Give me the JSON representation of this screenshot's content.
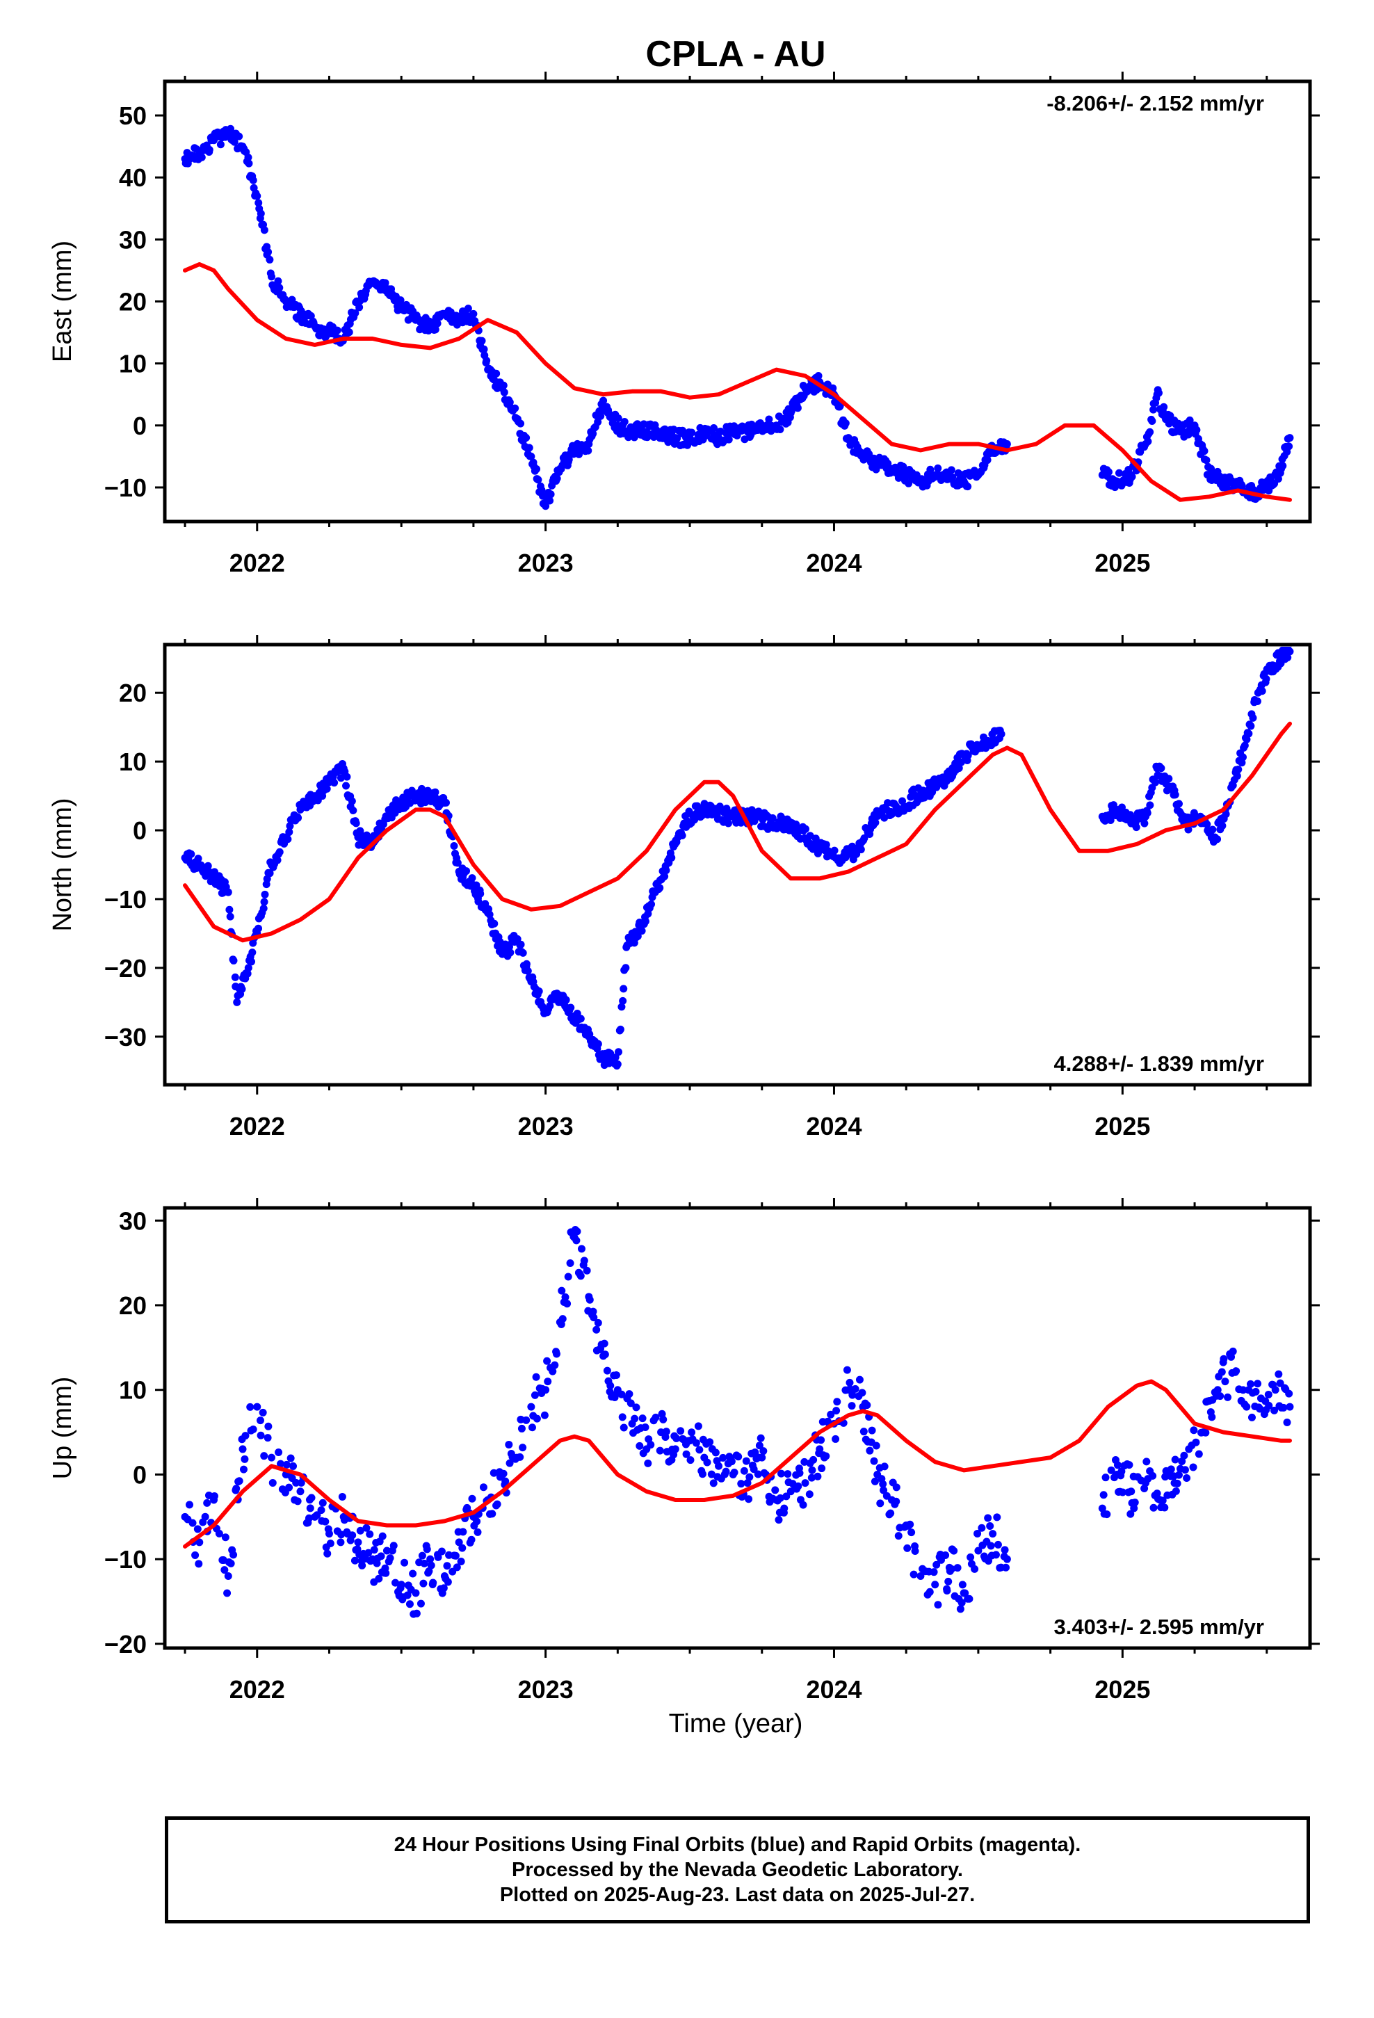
{
  "title": "CPLA - AU",
  "xlabel": "Time (year)",
  "xticks": [
    "2022",
    "2023",
    "2024",
    "2025"
  ],
  "footer": {
    "line1": "24 Hour Positions Using Final Orbits (blue) and Rapid Orbits (magenta).",
    "line2": "Processed by the Nevada Geodetic Laboratory.",
    "line3": "Plotted on 2025-Aug-23. Last data on 2025-Jul-27."
  },
  "colors": {
    "observations": "#0000ff",
    "model": "#ff0000",
    "frame": "#000000"
  },
  "chart_data": [
    {
      "type": "scatter",
      "name": "east",
      "ylabel": "East (mm)",
      "rate_label": "-8.206+/- 2.152 mm/yr",
      "rate_position": "top-right",
      "xlim": [
        2021.68,
        2025.65
      ],
      "ylim": [
        -15.5,
        55.5
      ],
      "yticks": [
        50,
        40,
        30,
        20,
        10,
        0,
        -10
      ],
      "gaps": [
        [
          2024.58,
          2024.93
        ]
      ],
      "series": [
        {
          "name": "",
          "style": "points",
          "x": [
            2021.75,
            2021.8,
            2021.85,
            2021.9,
            2021.95,
            2022.0,
            2022.05,
            2022.1,
            2022.15,
            2022.2,
            2022.25,
            2022.3,
            2022.35,
            2022.4,
            2022.45,
            2022.5,
            2022.55,
            2022.6,
            2022.65,
            2022.7,
            2022.75,
            2022.8,
            2022.85,
            2022.9,
            2022.95,
            2023.0,
            2023.05,
            2023.1,
            2023.15,
            2023.2,
            2023.25,
            2023.3,
            2023.35,
            2023.4,
            2023.45,
            2023.5,
            2023.55,
            2023.6,
            2023.65,
            2023.7,
            2023.75,
            2023.8,
            2023.85,
            2023.9,
            2023.95,
            2024.0,
            2024.05,
            2024.1,
            2024.15,
            2024.2,
            2024.25,
            2024.3,
            2024.35,
            2024.4,
            2024.45,
            2024.5,
            2024.55,
            2024.6,
            2024.93,
            2024.98,
            2025.03,
            2025.08,
            2025.12,
            2025.15,
            2025.2,
            2025.25,
            2025.3,
            2025.35,
            2025.4,
            2025.45,
            2025.5,
            2025.55,
            2025.58
          ],
          "y": [
            43,
            44,
            46,
            47,
            45,
            37,
            24,
            20,
            18,
            16,
            15,
            14,
            20,
            23,
            22,
            19,
            17,
            16,
            18,
            17,
            18,
            9,
            6,
            1,
            -5,
            -13,
            -7,
            -4,
            -3,
            4,
            0,
            -1,
            -1,
            -1,
            -2,
            -2,
            -1,
            -2,
            -1,
            -1,
            0,
            0,
            2,
            6,
            7,
            5,
            -2,
            -5,
            -6,
            -7,
            -8,
            -9,
            -8,
            -8,
            -9,
            -8,
            -4,
            -3,
            -8,
            -9,
            -8,
            -3,
            5,
            1,
            -1,
            0,
            -8,
            -9,
            -10,
            -11,
            -10,
            -7,
            -2
          ]
        },
        {
          "name": "",
          "style": "line",
          "x": [
            2021.75,
            2021.8,
            2021.85,
            2021.9,
            2022.0,
            2022.1,
            2022.2,
            2022.3,
            2022.4,
            2022.5,
            2022.6,
            2022.7,
            2022.8,
            2022.9,
            2023.0,
            2023.1,
            2023.2,
            2023.3,
            2023.4,
            2023.5,
            2023.6,
            2023.7,
            2023.8,
            2023.9,
            2024.0,
            2024.1,
            2024.2,
            2024.3,
            2024.4,
            2024.5,
            2024.6,
            2024.7,
            2024.8,
            2024.9,
            2025.0,
            2025.1,
            2025.2,
            2025.3,
            2025.4,
            2025.5,
            2025.58
          ],
          "y": [
            25,
            26,
            25,
            22,
            17,
            14,
            13,
            14,
            14,
            13,
            12.5,
            14,
            17,
            15,
            10,
            6,
            5,
            5.5,
            5.5,
            4.5,
            5,
            7,
            9,
            8,
            5,
            1,
            -3,
            -4,
            -3,
            -3,
            -4,
            -3,
            0,
            0,
            -4,
            -9,
            -12,
            -11.5,
            -10.5,
            -11.5,
            -12
          ]
        }
      ]
    },
    {
      "type": "scatter",
      "name": "north",
      "ylabel": "North (mm)",
      "rate_label": "4.288+/- 1.839 mm/yr",
      "rate_position": "bottom-right",
      "xlim": [
        2021.68,
        2025.65
      ],
      "ylim": [
        -37,
        27
      ],
      "yticks": [
        20,
        10,
        0,
        -10,
        -20,
        -30
      ],
      "gaps": [
        [
          2024.58,
          2024.93
        ]
      ],
      "series": [
        {
          "name": "",
          "style": "points",
          "x": [
            2021.75,
            2021.8,
            2021.85,
            2021.9,
            2021.93,
            2021.97,
            2022.0,
            2022.05,
            2022.1,
            2022.15,
            2022.2,
            2022.25,
            2022.3,
            2022.35,
            2022.4,
            2022.45,
            2022.5,
            2022.55,
            2022.6,
            2022.65,
            2022.7,
            2022.75,
            2022.8,
            2022.85,
            2022.9,
            2022.95,
            2023.0,
            2023.05,
            2023.1,
            2023.15,
            2023.2,
            2023.25,
            2023.28,
            2023.33,
            2023.38,
            2023.43,
            2023.48,
            2023.53,
            2023.58,
            2023.63,
            2023.68,
            2023.73,
            2023.78,
            2023.83,
            2023.88,
            2023.93,
            2023.98,
            2024.03,
            2024.08,
            2024.13,
            2024.18,
            2024.23,
            2024.28,
            2024.33,
            2024.38,
            2024.43,
            2024.48,
            2024.53,
            2024.58,
            2024.93,
            2024.98,
            2025.03,
            2025.08,
            2025.12,
            2025.17,
            2025.22,
            2025.27,
            2025.32,
            2025.37,
            2025.42,
            2025.47,
            2025.52,
            2025.58
          ],
          "y": [
            -4,
            -5,
            -7,
            -9,
            -25,
            -20,
            -15,
            -5,
            -1,
            3,
            5,
            7,
            9,
            -1,
            -2,
            2,
            4,
            5,
            5,
            4,
            -6,
            -8,
            -12,
            -18,
            -16,
            -22,
            -26,
            -24,
            -27,
            -30,
            -33,
            -34,
            -17,
            -14,
            -9,
            -4,
            1,
            3,
            3,
            2,
            2,
            2,
            1,
            1,
            0,
            -2,
            -3,
            -4,
            -3,
            1,
            3,
            3,
            5,
            6,
            7,
            10,
            12,
            13,
            14,
            2,
            3,
            1,
            2,
            9,
            6,
            1,
            2,
            -1,
            4,
            12,
            20,
            24,
            26
          ]
        },
        {
          "name": "",
          "style": "line",
          "x": [
            2021.75,
            2021.85,
            2021.95,
            2022.05,
            2022.15,
            2022.25,
            2022.35,
            2022.45,
            2022.55,
            2022.6,
            2022.65,
            2022.75,
            2022.85,
            2022.95,
            2023.05,
            2023.15,
            2023.25,
            2023.35,
            2023.45,
            2023.55,
            2023.6,
            2023.65,
            2023.75,
            2023.85,
            2023.95,
            2024.05,
            2024.15,
            2024.25,
            2024.35,
            2024.45,
            2024.55,
            2024.6,
            2024.65,
            2024.75,
            2024.85,
            2024.95,
            2025.05,
            2025.15,
            2025.25,
            2025.35,
            2025.45,
            2025.55,
            2025.58
          ],
          "y": [
            -8,
            -14,
            -16,
            -15,
            -13,
            -10,
            -4,
            0,
            3,
            3,
            2,
            -5,
            -10,
            -11.5,
            -11,
            -9,
            -7,
            -3,
            3,
            7,
            7,
            5,
            -3,
            -7,
            -7,
            -6,
            -4,
            -2,
            3,
            7,
            11,
            12,
            11,
            3,
            -3,
            -3,
            -2,
            0,
            1,
            3,
            8,
            14,
            15.5
          ]
        }
      ]
    },
    {
      "type": "scatter",
      "name": "up",
      "ylabel": "Up (mm)",
      "rate_label": "3.403+/- 2.595 mm/yr",
      "rate_position": "bottom-right",
      "xlim": [
        2021.68,
        2025.65
      ],
      "ylim": [
        -20.5,
        31.5
      ],
      "yticks": [
        30,
        20,
        10,
        0,
        -10,
        -20
      ],
      "gaps": [
        [
          2024.62,
          2024.93
        ]
      ],
      "series": [
        {
          "name": "",
          "style": "points",
          "x": [
            2021.75,
            2021.8,
            2021.85,
            2021.9,
            2021.95,
            2022.0,
            2022.05,
            2022.1,
            2022.15,
            2022.2,
            2022.25,
            2022.3,
            2022.35,
            2022.4,
            2022.45,
            2022.5,
            2022.55,
            2022.6,
            2022.65,
            2022.7,
            2022.75,
            2022.8,
            2022.85,
            2022.9,
            2022.95,
            2023.0,
            2023.05,
            2023.1,
            2023.15,
            2023.2,
            2023.25,
            2023.3,
            2023.35,
            2023.4,
            2023.45,
            2023.5,
            2023.55,
            2023.6,
            2023.65,
            2023.7,
            2023.75,
            2023.8,
            2023.85,
            2023.9,
            2023.95,
            2024.0,
            2024.05,
            2024.1,
            2024.15,
            2024.2,
            2024.25,
            2024.3,
            2024.35,
            2024.4,
            2024.45,
            2024.5,
            2024.55,
            2024.6,
            2024.93,
            2024.98,
            2025.03,
            2025.08,
            2025.13,
            2025.18,
            2025.23,
            2025.28,
            2025.33,
            2025.38,
            2025.43,
            2025.48,
            2025.53,
            2025.58
          ],
          "y": [
            -5,
            -8,
            -3,
            -12,
            3,
            8,
            2,
            0,
            -2,
            -5,
            -7,
            -5,
            -8,
            -10,
            -9,
            -13,
            -14,
            -10,
            -12,
            -8,
            -5,
            -3,
            0,
            2,
            8,
            10,
            18,
            28,
            21,
            14,
            10,
            6,
            3,
            5,
            3,
            4,
            2,
            1,
            0,
            -1,
            2,
            -3,
            -2,
            -1,
            3,
            6,
            10,
            8,
            0,
            -3,
            -6,
            -12,
            -13,
            -11,
            -14,
            -9,
            -7,
            -10,
            -4,
            0,
            -2,
            -1,
            -3,
            -1,
            3,
            5,
            10,
            12,
            8,
            9,
            10,
            8
          ]
        },
        {
          "name": "",
          "style": "line",
          "x": [
            2021.75,
            2021.85,
            2021.95,
            2022.05,
            2022.15,
            2022.25,
            2022.35,
            2022.45,
            2022.55,
            2022.65,
            2022.75,
            2022.85,
            2022.95,
            2023.05,
            2023.1,
            2023.15,
            2023.25,
            2023.35,
            2023.45,
            2023.55,
            2023.65,
            2023.75,
            2023.85,
            2023.95,
            2024.05,
            2024.1,
            2024.15,
            2024.25,
            2024.35,
            2024.45,
            2024.55,
            2024.65,
            2024.75,
            2024.85,
            2024.95,
            2025.05,
            2025.1,
            2025.15,
            2025.25,
            2025.35,
            2025.45,
            2025.55,
            2025.58
          ],
          "y": [
            -8.5,
            -6,
            -2,
            1,
            0,
            -3,
            -5.5,
            -6,
            -6,
            -5.5,
            -4.5,
            -2,
            1,
            4,
            4.5,
            4,
            0,
            -2,
            -3,
            -3,
            -2.5,
            -1,
            2,
            5,
            7,
            7.5,
            7,
            4,
            1.5,
            0.5,
            1,
            1.5,
            2,
            4,
            8,
            10.5,
            11,
            10,
            6,
            5,
            4.5,
            4,
            4
          ]
        }
      ]
    }
  ]
}
